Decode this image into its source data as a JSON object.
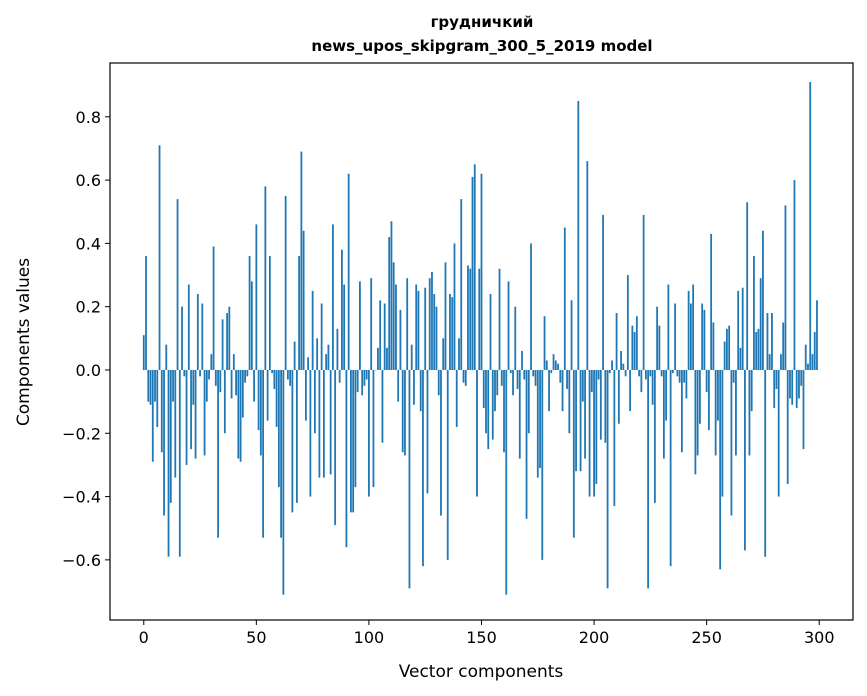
{
  "chart_data": {
    "type": "bar",
    "title_line1": "грудничкий",
    "title_line2": "news_upos_skipgram_300_5_2019 model",
    "xlabel": "Vector components",
    "ylabel": "Components values",
    "xlim": [
      -15,
      315
    ],
    "ylim": [
      -0.79,
      0.97
    ],
    "xticks": [
      0,
      50,
      100,
      150,
      200,
      250,
      300
    ],
    "xtick_labels": [
      "0",
      "50",
      "100",
      "150",
      "200",
      "250",
      "300"
    ],
    "yticks": [
      -0.6,
      -0.4,
      -0.2,
      0.0,
      0.2,
      0.4,
      0.6,
      0.8
    ],
    "ytick_labels": [
      "−0.6",
      "−0.4",
      "−0.2",
      "0.0",
      "0.2",
      "0.4",
      "0.6",
      "0.8"
    ],
    "bar_color": "#1f77b4",
    "values": [
      0.11,
      0.36,
      -0.1,
      -0.11,
      -0.29,
      -0.1,
      -0.18,
      0.71,
      -0.26,
      -0.46,
      0.08,
      -0.59,
      -0.42,
      -0.1,
      -0.34,
      0.54,
      -0.59,
      0.2,
      -0.02,
      -0.3,
      0.27,
      -0.25,
      -0.11,
      -0.28,
      0.24,
      -0.02,
      0.21,
      -0.27,
      -0.1,
      -0.03,
      0.05,
      0.39,
      -0.05,
      -0.53,
      -0.07,
      0.16,
      -0.2,
      0.18,
      0.2,
      -0.09,
      0.05,
      -0.08,
      -0.28,
      -0.29,
      -0.15,
      -0.04,
      -0.02,
      0.36,
      0.28,
      -0.1,
      0.46,
      -0.19,
      -0.27,
      -0.53,
      0.58,
      -0.16,
      0.36,
      -0.01,
      -0.06,
      -0.18,
      -0.37,
      -0.53,
      -0.71,
      0.55,
      -0.03,
      -0.05,
      -0.45,
      0.09,
      -0.42,
      0.36,
      0.69,
      0.44,
      -0.16,
      0.04,
      -0.4,
      0.25,
      -0.2,
      0.1,
      -0.34,
      0.21,
      -0.34,
      0.05,
      0.08,
      -0.33,
      0.46,
      -0.49,
      0.13,
      -0.04,
      0.38,
      0.27,
      -0.56,
      0.62,
      -0.45,
      -0.45,
      -0.37,
      -0.07,
      0.28,
      -0.08,
      -0.05,
      -0.03,
      -0.4,
      0.29,
      -0.37,
      0.0,
      0.07,
      0.22,
      -0.23,
      0.21,
      0.07,
      0.42,
      0.47,
      0.34,
      0.27,
      -0.1,
      0.19,
      -0.26,
      -0.27,
      0.29,
      -0.69,
      0.08,
      -0.11,
      0.27,
      0.25,
      -0.13,
      -0.62,
      0.26,
      -0.39,
      0.29,
      0.31,
      0.24,
      0.2,
      -0.08,
      -0.46,
      0.1,
      0.34,
      -0.6,
      0.24,
      0.23,
      0.4,
      -0.18,
      0.1,
      0.54,
      -0.04,
      -0.05,
      0.33,
      0.32,
      0.61,
      0.65,
      -0.4,
      0.32,
      0.62,
      -0.12,
      -0.2,
      -0.25,
      0.24,
      -0.22,
      -0.13,
      -0.08,
      0.32,
      -0.05,
      -0.26,
      -0.71,
      0.28,
      -0.01,
      -0.08,
      0.2,
      -0.06,
      -0.28,
      0.06,
      -0.03,
      -0.47,
      -0.2,
      0.4,
      -0.02,
      -0.05,
      -0.34,
      -0.31,
      -0.6,
      0.17,
      0.03,
      -0.13,
      -0.01,
      0.05,
      0.03,
      0.02,
      -0.04,
      -0.13,
      0.45,
      -0.06,
      -0.2,
      0.22,
      -0.53,
      -0.32,
      0.85,
      -0.32,
      -0.1,
      -0.28,
      0.66,
      -0.4,
      -0.07,
      -0.4,
      -0.36,
      -0.03,
      -0.22,
      0.49,
      -0.23,
      -0.69,
      -0.01,
      0.03,
      -0.43,
      0.18,
      -0.17,
      0.06,
      0.02,
      -0.02,
      0.3,
      -0.13,
      0.14,
      0.12,
      0.17,
      -0.02,
      -0.07,
      0.49,
      -0.03,
      -0.69,
      -0.02,
      -0.11,
      -0.42,
      0.2,
      0.14,
      -0.02,
      -0.28,
      -0.16,
      0.27,
      -0.62,
      -0.01,
      0.21,
      -0.02,
      -0.04,
      -0.26,
      -0.04,
      -0.09,
      0.25,
      0.21,
      0.27,
      -0.33,
      -0.27,
      -0.17,
      0.21,
      0.19,
      -0.07,
      -0.19,
      0.43,
      0.15,
      -0.27,
      -0.16,
      -0.63,
      -0.4,
      0.09,
      0.13,
      0.14,
      -0.46,
      -0.04,
      -0.27,
      0.25,
      0.07,
      0.26,
      -0.57,
      0.53,
      -0.27,
      -0.13,
      0.36,
      0.12,
      0.13,
      0.29,
      0.44,
      -0.59,
      0.18,
      0.05,
      0.18,
      -0.12,
      -0.06,
      -0.4,
      0.05,
      0.15,
      0.52,
      -0.36,
      -0.09,
      -0.11,
      0.6,
      -0.12,
      -0.09,
      -0.05,
      -0.25,
      0.08,
      0.02,
      0.91,
      0.05,
      0.12,
      0.22
    ]
  }
}
